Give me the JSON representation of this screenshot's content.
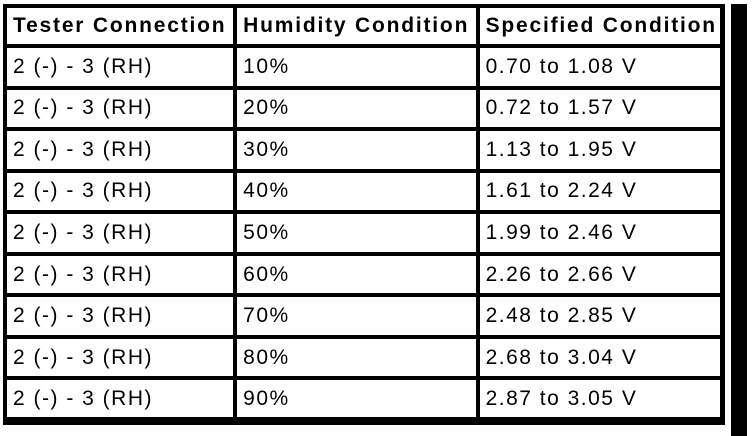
{
  "colors": {
    "border": "#000000",
    "background": "#ffffff",
    "text": "#000000"
  },
  "table": {
    "headers": [
      "Tester Connection",
      "Humidity Condition",
      "Specified Condition"
    ],
    "rows": [
      [
        "2 (-) - 3 (RH)",
        "10%",
        "0.70 to 1.08 V"
      ],
      [
        "2 (-) - 3 (RH)",
        "20%",
        "0.72 to 1.57 V"
      ],
      [
        "2 (-) - 3 (RH)",
        "30%",
        "1.13 to 1.95 V"
      ],
      [
        "2 (-) - 3 (RH)",
        "40%",
        "1.61 to 2.24 V"
      ],
      [
        "2 (-) - 3 (RH)",
        "50%",
        "1.99 to 2.46 V"
      ],
      [
        "2 (-) - 3 (RH)",
        "60%",
        "2.26 to 2.66 V"
      ],
      [
        "2 (-) - 3 (RH)",
        "70%",
        "2.48 to 2.85 V"
      ],
      [
        "2 (-) - 3 (RH)",
        "80%",
        "2.68 to 3.04 V"
      ],
      [
        "2 (-) - 3 (RH)",
        "90%",
        "2.87 to 3.05 V"
      ]
    ]
  }
}
